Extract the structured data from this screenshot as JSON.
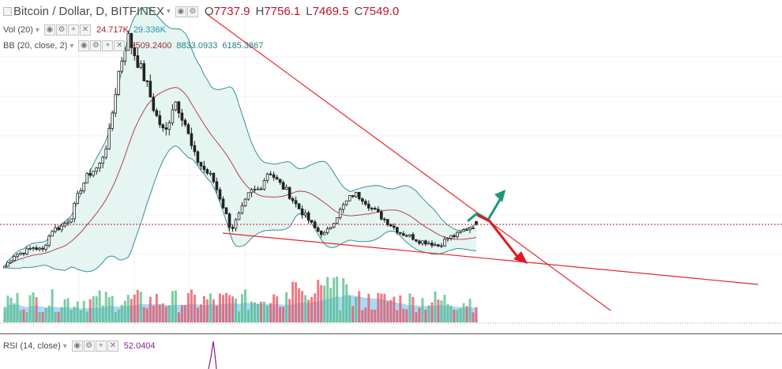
{
  "header": {
    "symbol": "Bitcoin / Dollar, D, BITFINEX",
    "ohlc": [
      {
        "key": "O",
        "value": "7737.9"
      },
      {
        "key": "H",
        "value": "7756.1"
      },
      {
        "key": "L",
        "value": "7469.5"
      },
      {
        "key": "C",
        "value": "7549.0"
      }
    ]
  },
  "indicators": {
    "vol": {
      "label": "Vol (20)",
      "v1": "24.717K",
      "v2": "29.336K"
    },
    "bb": {
      "label": "BB (20, close, 2)",
      "v1": "7509.2400",
      "v2": "8833.0933",
      "v3": "6185.3867"
    },
    "rsi": {
      "label": "RSI (14, close)",
      "v1": "52.0404"
    }
  },
  "colors": {
    "up": "#53b987",
    "down": "#eb4d5c",
    "candle": "#222222",
    "bb_band": "#3a8e93",
    "bb_basis": "#b2405a",
    "bb_fill": "#dff2ee",
    "trendline": "#e8262c",
    "arrow_up": "#1c9779",
    "arrow_down": "#e0161f",
    "vol_ma": "#8fcdf2",
    "vol_bar": "#5a8fa8",
    "rsi": "#8a1f8e",
    "close_line": "#b5172d"
  },
  "chart_data": {
    "type": "candlestick",
    "symbol": "Bitcoin / Dollar",
    "timeframe": "D",
    "exchange": "BITFINEX",
    "last_bar": {
      "open": 7737.9,
      "high": 7756.1,
      "low": 7469.5,
      "close": 7549.0
    },
    "close_path": [
      4900,
      5600,
      5800,
      6100,
      5900,
      7200,
      7400,
      8000,
      9800,
      10800,
      11200,
      13000,
      17000,
      19500,
      18000,
      16500,
      14500,
      13200,
      15500,
      14200,
      12000,
      11100,
      10500,
      9000,
      7200,
      8300,
      9600,
      9800,
      11000,
      10200,
      9600,
      8700,
      8000,
      7200,
      6900,
      7900,
      8800,
      9500,
      9200,
      8500,
      8000,
      7500,
      7000,
      6800,
      6500,
      6400,
      6200,
      6700,
      6900,
      7300,
      7549
    ],
    "bollinger_bands": {
      "period": 20,
      "source": "close",
      "mult": 2,
      "basis": 7509.24,
      "upper": 8833.0933,
      "lower": 6185.3867
    },
    "volume": {
      "period": 20,
      "last": "24.717K",
      "ma": "29.336K"
    },
    "rsi": {
      "period": 14,
      "source": "close",
      "value": 52.0404
    },
    "annotations": [
      "descending upper trendline",
      "lower support line",
      "breakout up arrow",
      "breakdown down arrow"
    ]
  }
}
